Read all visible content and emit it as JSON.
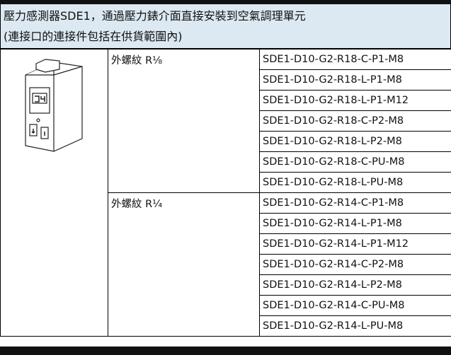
{
  "header": {
    "lines": [
      "壓力感測器SDE1，通過壓力錶介面直接安裝到空氣調理單元",
      "(連接口的連接件包括在供貨範圍內)"
    ]
  },
  "groups": [
    {
      "thread": "外螺紋 R⅛",
      "parts": [
        "SDE1-D10-G2-R18-C-P1-M8",
        "SDE1-D10-G2-R18-L-P1-M8",
        "SDE1-D10-G2-R18-L-P1-M12",
        "SDE1-D10-G2-R18-C-P2-M8",
        "SDE1-D10-G2-R18-L-P2-M8",
        "SDE1-D10-G2-R18-C-PU-M8",
        "SDE1-D10-G2-R18-L-PU-M8"
      ]
    },
    {
      "thread": "外螺紋 R¼",
      "parts": [
        "SDE1-D10-G2-R14-C-P1-M8",
        "SDE1-D10-G2-R14-L-P1-M8",
        "SDE1-D10-G2-R14-L-P1-M12",
        "SDE1-D10-G2-R14-C-P2-M8",
        "SDE1-D10-G2-R14-L-P2-M8",
        "SDE1-D10-G2-R14-C-PU-M8",
        "SDE1-D10-G2-R14-L-PU-M8"
      ]
    }
  ]
}
